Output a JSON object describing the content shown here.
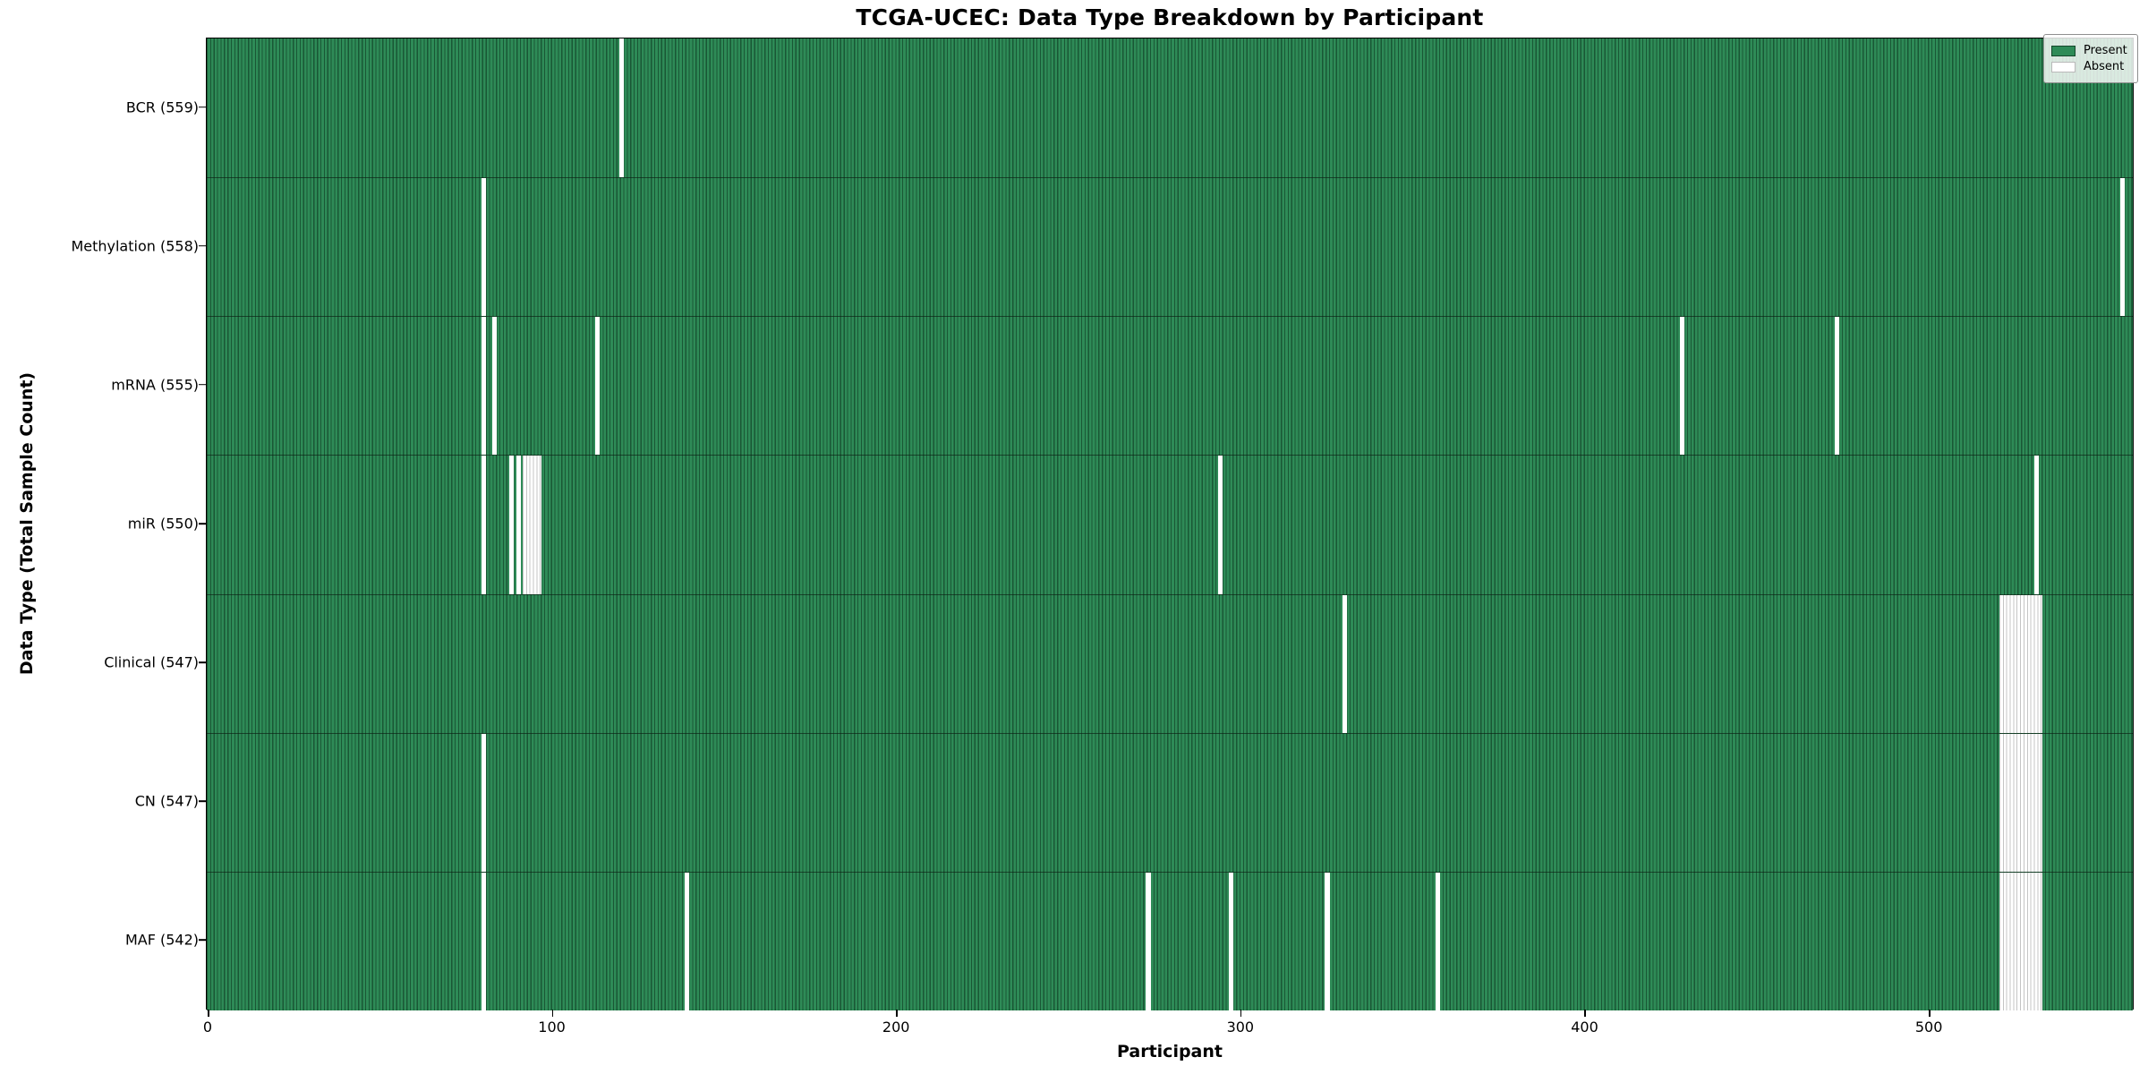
{
  "title": "TCGA-UCEC: Data Type Breakdown by Participant",
  "chart_data": {
    "type": "heatmap",
    "title": "TCGA-UCEC: Data Type Breakdown by Participant",
    "xlabel": "Participant",
    "ylabel": "Data Type (Total Sample Count)",
    "x_ticks": [
      0,
      100,
      200,
      300,
      400,
      500
    ],
    "xlim": [
      -0.5,
      559.5
    ],
    "n_participants": 560,
    "grid": false,
    "legend_position": "upper right",
    "legend": [
      {
        "label": "Present",
        "color": "#2e8b57"
      },
      {
        "label": "Absent",
        "color": "#ffffff"
      }
    ],
    "present_color": "#2e8b57",
    "absent_color": "#ffffff",
    "rows": [
      {
        "data_type": "BCR",
        "label": "BCR (559)",
        "total": 559,
        "absent_participants": [
          120
        ]
      },
      {
        "data_type": "Methylation",
        "label": "Methylation (558)",
        "total": 558,
        "absent_participants": [
          80,
          556
        ]
      },
      {
        "data_type": "mRNA",
        "label": "mRNA (555)",
        "total": 555,
        "absent_participants": [
          80,
          83,
          113,
          428,
          473
        ]
      },
      {
        "data_type": "miR",
        "label": "miR (550)",
        "total": 550,
        "absent_participants": [
          80,
          88,
          90,
          92,
          93,
          94,
          95,
          96,
          294,
          531
        ]
      },
      {
        "data_type": "Clinical",
        "label": "Clinical (547)",
        "total": 547,
        "absent_participants": [
          330,
          521,
          522,
          523,
          524,
          525,
          526,
          527,
          528,
          529,
          530,
          531,
          532
        ]
      },
      {
        "data_type": "CN",
        "label": "CN (547)",
        "total": 547,
        "absent_participants": [
          80,
          521,
          522,
          523,
          524,
          525,
          526,
          527,
          528,
          529,
          530,
          531,
          532
        ]
      },
      {
        "data_type": "MAF",
        "label": "MAF (542)",
        "total": 542,
        "absent_participants": [
          80,
          139,
          273,
          297,
          325,
          357,
          521,
          522,
          523,
          524,
          525,
          526,
          527,
          528,
          529,
          530,
          531,
          532
        ]
      }
    ]
  }
}
